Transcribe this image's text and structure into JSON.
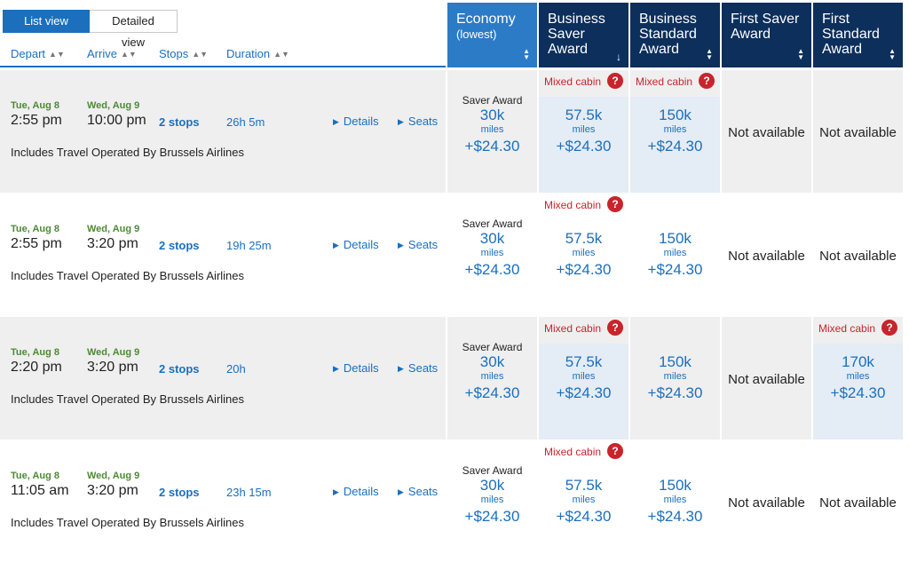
{
  "view_toggle": {
    "list": "List view",
    "detailed": "Detailed view"
  },
  "columns": {
    "depart": "Depart",
    "arrive": "Arrive",
    "stops": "Stops",
    "duration": "Duration"
  },
  "fare_headers": [
    {
      "title": "Economy",
      "sub": "(lowest)",
      "sort": "updown"
    },
    {
      "title": "Business Saver Award",
      "sort": "down"
    },
    {
      "title": "Business Standard Award",
      "sort": "updown"
    },
    {
      "title": "First Saver Award",
      "sort": "updown"
    },
    {
      "title": "First Standard Award",
      "sort": "updown"
    }
  ],
  "labels": {
    "details": "Details",
    "seats": "Seats",
    "mixed_cabin": "Mixed cabin",
    "not_available": "Not available",
    "miles": "miles",
    "saver_award": "Saver Award",
    "question": "?"
  },
  "flights": [
    {
      "depart_date": "Tue, Aug 8",
      "depart_time": "2:55 pm",
      "arrive_date": "Wed, Aug 9",
      "arrive_time": "10:00 pm",
      "stops": "2 stops",
      "duration": "26h 5m",
      "operated": "Includes Travel Operated By Brussels Airlines",
      "fares": [
        {
          "award": "Saver Award",
          "miles": "30k",
          "price": "+$24.30"
        },
        {
          "mixed": true,
          "miles": "57.5k",
          "price": "+$24.30"
        },
        {
          "mixed": true,
          "miles": "150k",
          "price": "+$24.30"
        },
        {
          "na": true
        },
        {
          "na": true
        }
      ]
    },
    {
      "depart_date": "Tue, Aug 8",
      "depart_time": "2:55 pm",
      "arrive_date": "Wed, Aug 9",
      "arrive_time": "3:20 pm",
      "stops": "2 stops",
      "duration": "19h 25m",
      "operated": "Includes Travel Operated By Brussels Airlines",
      "fares": [
        {
          "award": "Saver Award",
          "miles": "30k",
          "price": "+$24.30"
        },
        {
          "mixed": true,
          "miles": "57.5k",
          "price": "+$24.30"
        },
        {
          "miles": "150k",
          "price": "+$24.30"
        },
        {
          "na": true
        },
        {
          "na": true
        }
      ]
    },
    {
      "depart_date": "Tue, Aug 8",
      "depart_time": "2:20 pm",
      "arrive_date": "Wed, Aug 9",
      "arrive_time": "3:20 pm",
      "stops": "2 stops",
      "duration": "20h",
      "operated": "Includes Travel Operated By Brussels Airlines",
      "fares": [
        {
          "award": "Saver Award",
          "miles": "30k",
          "price": "+$24.30"
        },
        {
          "mixed": true,
          "miles": "57.5k",
          "price": "+$24.30"
        },
        {
          "miles": "150k",
          "price": "+$24.30"
        },
        {
          "na": true
        },
        {
          "mixed": true,
          "miles": "170k",
          "price": "+$24.30"
        }
      ]
    },
    {
      "depart_date": "Tue, Aug 8",
      "depart_time": "11:05 am",
      "arrive_date": "Wed, Aug 9",
      "arrive_time": "3:20 pm",
      "stops": "2 stops",
      "duration": "23h 15m",
      "operated": "Includes Travel Operated By Brussels Airlines",
      "fares": [
        {
          "award": "Saver Award",
          "miles": "30k",
          "price": "+$24.30"
        },
        {
          "mixed": true,
          "miles": "57.5k",
          "price": "+$24.30"
        },
        {
          "miles": "150k",
          "price": "+$24.30"
        },
        {
          "na": true
        },
        {
          "na": true
        }
      ]
    }
  ]
}
